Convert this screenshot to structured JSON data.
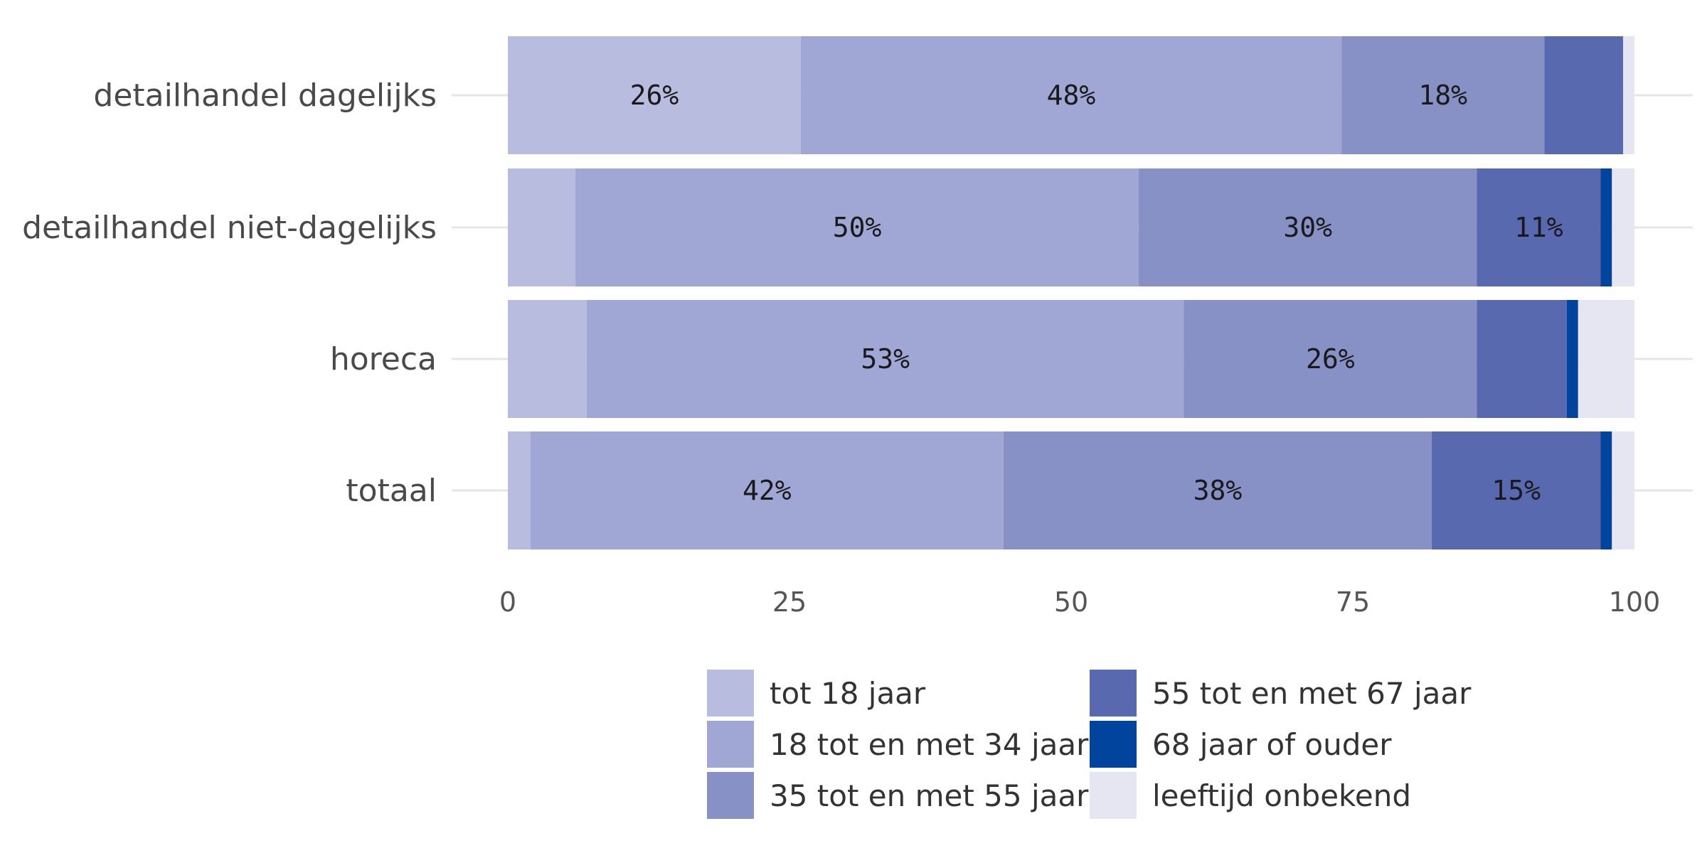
{
  "chart_data": {
    "type": "bar",
    "orientation": "horizontal",
    "stacked": true,
    "categories": [
      "detailhandel dagelijks",
      "detailhandel niet-dagelijks",
      "horeca",
      "totaal"
    ],
    "series": [
      {
        "name": "tot 18 jaar",
        "color": "#b8bcde",
        "values": [
          26,
          6,
          7,
          2
        ],
        "labels": [
          "26%",
          "",
          "",
          ""
        ]
      },
      {
        "name": "18 tot en met 34 jaar",
        "color": "#a1a7d4",
        "values": [
          48,
          50,
          53,
          42
        ],
        "labels": [
          "48%",
          "50%",
          "53%",
          "42%"
        ]
      },
      {
        "name": "35 tot en met 55 jaar",
        "color": "#8891c6",
        "values": [
          18,
          30,
          26,
          38
        ],
        "labels": [
          "18%",
          "30%",
          "26%",
          "38%"
        ]
      },
      {
        "name": "55 tot en met 67 jaar",
        "color": "#5869b0",
        "values": [
          7,
          11,
          8,
          15
        ],
        "labels": [
          "",
          "11%",
          "",
          "15%"
        ]
      },
      {
        "name": "68 jaar of ouder",
        "color": "#00449e",
        "values": [
          0,
          1,
          1,
          1
        ],
        "labels": [
          "",
          "",
          "",
          ""
        ]
      },
      {
        "name": "leeftijd onbekend",
        "color": "#e6e6f2",
        "values": [
          1,
          2,
          5,
          2
        ],
        "labels": [
          "",
          "",
          "",
          ""
        ]
      }
    ],
    "xlim": [
      0,
      100
    ],
    "xticks": [
      0,
      25,
      50,
      75,
      100
    ],
    "xlabel": "",
    "ylabel": "",
    "grid": true,
    "legend_position": "bottom"
  }
}
